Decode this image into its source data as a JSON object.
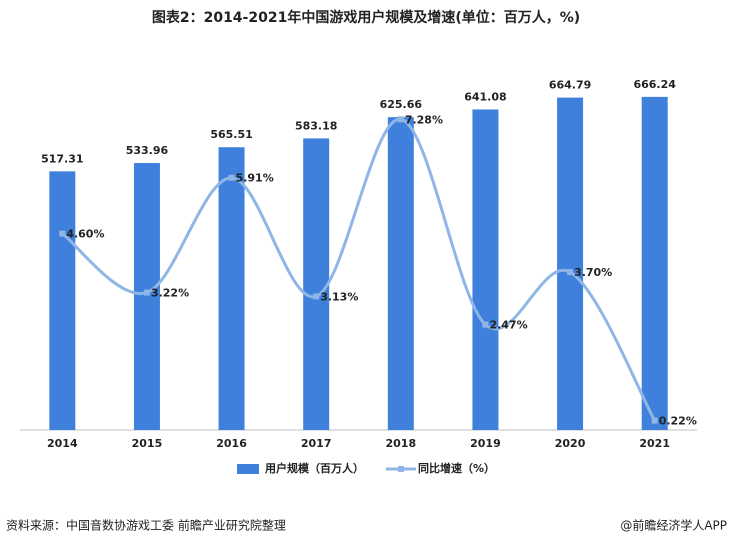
{
  "chart_data": {
    "type": "combo",
    "title": "图表2：2014-2021年中国游戏用户规模及增速(单位：百万人，%)",
    "categories": [
      "2014",
      "2015",
      "2016",
      "2017",
      "2018",
      "2019",
      "2020",
      "2021"
    ],
    "series": [
      {
        "name": "用户规模（百万人）",
        "type": "bar",
        "color": "#3f80dd",
        "values": [
          517.31,
          533.96,
          565.51,
          583.18,
          625.66,
          641.08,
          664.79,
          666.24
        ]
      },
      {
        "name": "同比增速（%）",
        "type": "line",
        "axis": "y2",
        "color": "#8fb6e6",
        "values": [
          4.6,
          3.22,
          5.91,
          3.13,
          7.28,
          2.47,
          3.7,
          0.22
        ],
        "value_labels": [
          "4.60%",
          "3.22%",
          "5.91%",
          "3.13%",
          "7.28%",
          "2.47%",
          "3.70%",
          "0.22%"
        ]
      }
    ],
    "ylim": [
      0,
      700
    ],
    "y2lim": [
      0,
      8.2
    ],
    "legend": "bottom",
    "source": "资料来源：中国音数协游戏工委 前瞻产业研究院整理",
    "credit": "@前瞻经济学人APP"
  }
}
